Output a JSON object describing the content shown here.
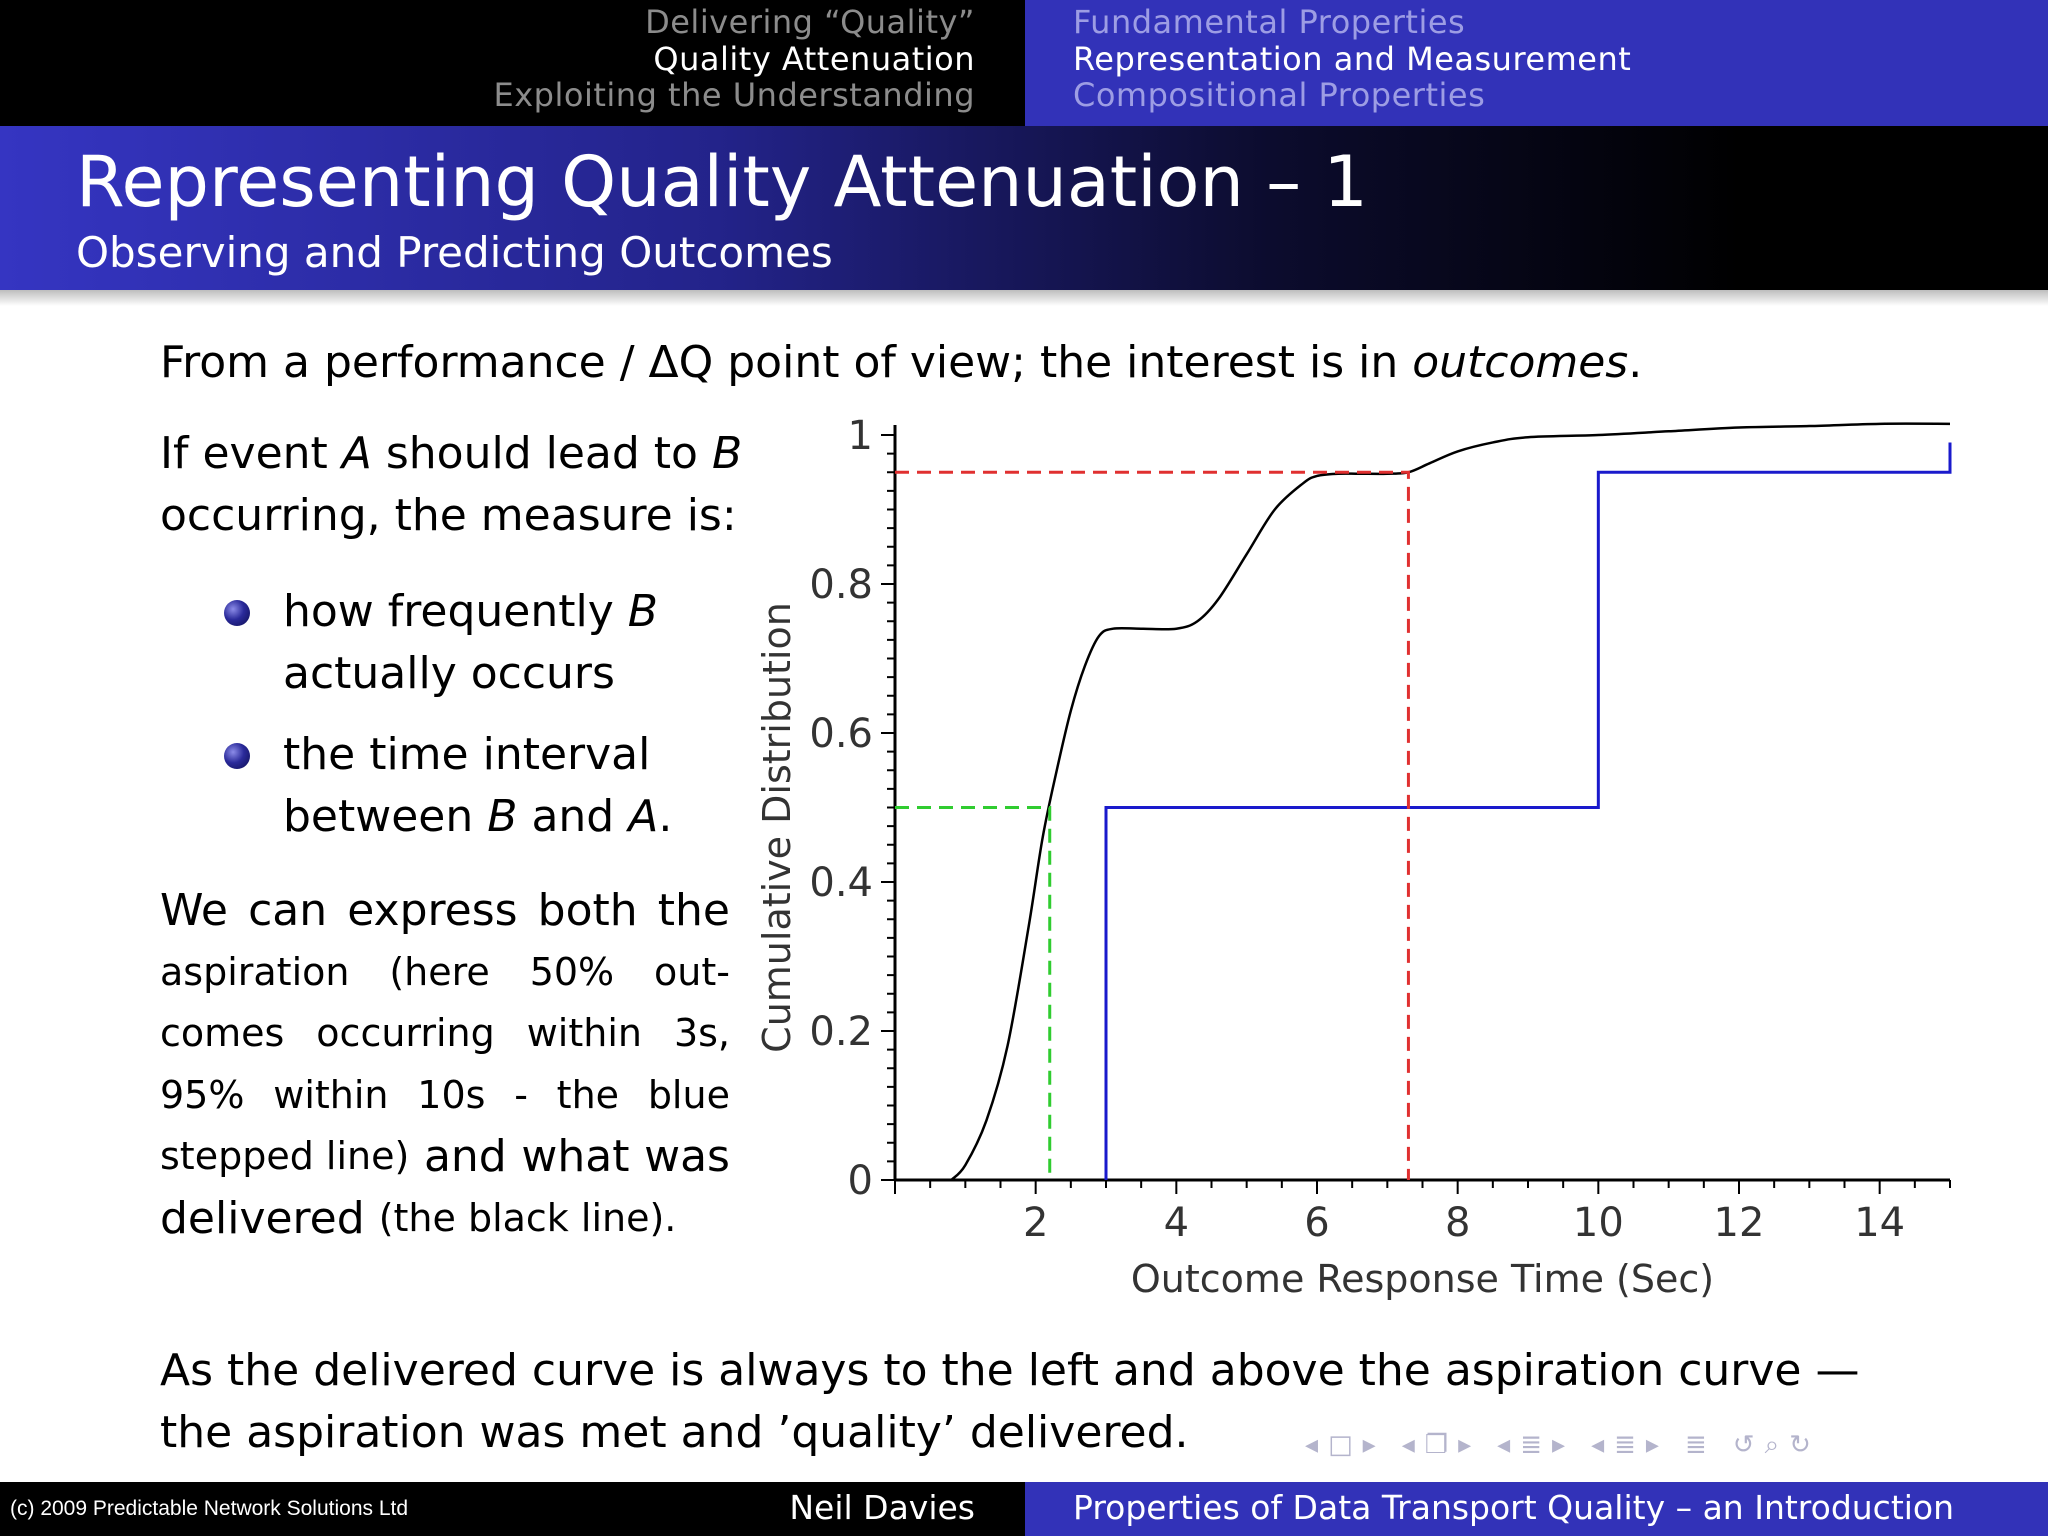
{
  "nav": {
    "left": [
      "Delivering “Quality”",
      "Quality Attenuation",
      "Exploiting the Understanding"
    ],
    "right": [
      "Fundamental Properties",
      "Representation and Measurement",
      "Compositional Properties"
    ]
  },
  "title": {
    "main": "Representing Quality Attenuation – 1",
    "sub": "Observing and Predicting Outcomes"
  },
  "body": {
    "intro_prefix": "From a performance / ΔQ point of view; the interest is in ",
    "intro_emph": "outcomes",
    "intro_suffix": ".",
    "lead_l1_a": "If event ",
    "lead_l1_A": "A",
    "lead_l1_b": " should lead to ",
    "lead_l1_B": "B",
    "lead_l2": "occurring, the measure is:",
    "bullet1_l1_a": "how frequently ",
    "bullet1_l1_B": "B",
    "bullet1_l2": "actually occurs",
    "bullet2_l1": "the time interval",
    "bullet2_l2_a": "between ",
    "bullet2_l2_B": "B",
    "bullet2_l2_and": " and ",
    "bullet2_l2_A": "A",
    "bullet2_l2_end": ".",
    "para": [
      [
        "We",
        "can",
        "express",
        "both",
        "the"
      ],
      [
        "aspiration",
        "(here",
        "50%",
        "out-"
      ],
      [
        "comes",
        "occurring",
        "within",
        "3s,"
      ],
      [
        "95%",
        "within",
        "10s",
        "-",
        "the",
        "blue"
      ],
      [
        "stepped line)",
        "and",
        "what",
        "was"
      ],
      [
        "delivered",
        "(the black line)."
      ]
    ],
    "conclusion_l1": "As the delivered curve is always to the left and above the aspiration curve —",
    "conclusion_l2": "the aspiration was met and ’quality’ delivered."
  },
  "footer": {
    "copyright": "(c) 2009 Predictable Network Solutions Ltd",
    "author": "Neil Davies",
    "talk_title": "Properties of Data Transport Quality – an Introduction"
  },
  "navsymbols": [
    "◂",
    "□",
    "▸",
    "◂",
    "❐",
    "▸",
    "◂",
    "≣",
    "▸",
    "◂",
    "≣",
    "▸",
    "≣",
    "↺",
    "⌕",
    "↻"
  ],
  "colors": {
    "nav_left_bg": "#000000",
    "nav_right_bg": "#3232b8",
    "title_gradient_start": "#3535c2",
    "delivered": "#000000",
    "aspiration": "#1a1acc",
    "percentile_95": "#e03030",
    "percentile_50": "#30cc30"
  },
  "chart_data": {
    "type": "line",
    "xlabel": "Outcome Response Time (Sec)",
    "ylabel": "Cumulative Distribution",
    "xlim": [
      0,
      15
    ],
    "ylim": [
      0,
      1
    ],
    "xticks": [
      2,
      4,
      6,
      8,
      10,
      12,
      14
    ],
    "yticks": [
      0,
      0.2,
      0.4,
      0.6,
      0.8,
      1
    ],
    "ytick_labels": [
      "0",
      "0.2",
      "0.4",
      "0.6",
      "0.8",
      "1"
    ],
    "grid": false,
    "series": [
      {
        "role": "delivered",
        "style": "solid",
        "color": "#000000",
        "x": [
          0.8,
          1.0,
          1.3,
          1.6,
          1.9,
          2.1,
          2.3,
          2.5,
          2.7,
          2.9,
          3.1,
          3.5,
          4.0,
          4.3,
          4.6,
          5.0,
          5.4,
          5.8,
          6.0,
          6.3,
          6.6,
          7.0,
          7.3,
          7.6,
          8.0,
          8.5,
          9.0,
          10.0,
          11.0,
          12.0,
          13.0,
          14.0,
          15.0
        ],
        "y": [
          0.0,
          0.02,
          0.08,
          0.18,
          0.34,
          0.46,
          0.55,
          0.63,
          0.69,
          0.73,
          0.74,
          0.74,
          0.74,
          0.75,
          0.78,
          0.84,
          0.9,
          0.935,
          0.945,
          0.948,
          0.948,
          0.948,
          0.95,
          0.962,
          0.978,
          0.99,
          0.997,
          1.0,
          1.005,
          1.01,
          1.012,
          1.015,
          1.015
        ]
      },
      {
        "role": "aspiration",
        "style": "solid",
        "color": "#1a1acc",
        "x": [
          3,
          3,
          10,
          10,
          15,
          15
        ],
        "y": [
          0,
          0.5,
          0.5,
          0.95,
          0.95,
          0.99
        ]
      },
      {
        "role": "95th percentile marker",
        "style": "dashed",
        "color": "#e03030",
        "x": [
          0,
          7.3,
          7.3
        ],
        "y": [
          0.95,
          0.95,
          0
        ]
      },
      {
        "role": "50th percentile marker",
        "style": "dashed",
        "color": "#30cc30",
        "x": [
          0,
          2.2,
          2.2
        ],
        "y": [
          0.5,
          0.5,
          0
        ]
      }
    ]
  }
}
